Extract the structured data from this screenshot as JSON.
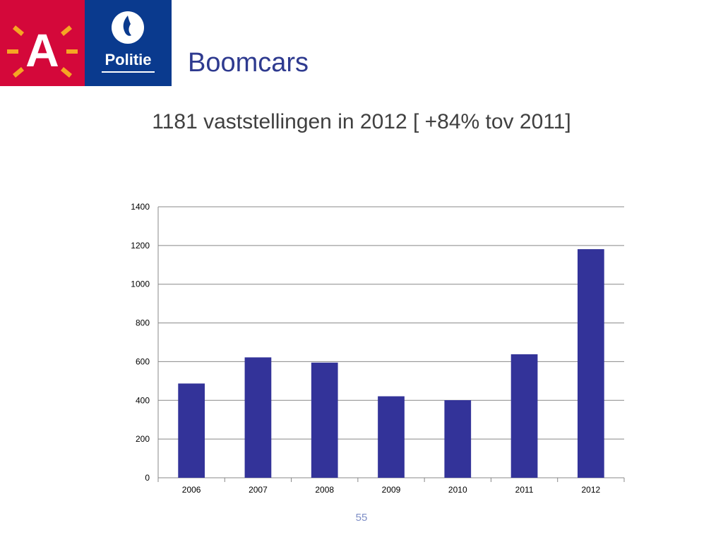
{
  "header": {
    "title": "Boomcars",
    "logo_antwerp_letter": "A",
    "logo_politie_text": "Politie"
  },
  "subtitle": "1181 vaststellingen in 2012 [ +84% tov 2011]",
  "page_number": "55",
  "colors": {
    "antwerp_red": "#d4083a",
    "antwerp_orange": "#f5a623",
    "politie_blue": "#0a3a8e",
    "title_blue": "#2e3a8f",
    "bar_color": "#333399"
  },
  "chart_data": {
    "type": "bar",
    "categories": [
      "2006",
      "2007",
      "2008",
      "2009",
      "2010",
      "2011",
      "2012"
    ],
    "values": [
      487,
      622,
      595,
      421,
      401,
      638,
      1181
    ],
    "title": "",
    "xlabel": "",
    "ylabel": "",
    "ylim": [
      0,
      1400
    ],
    "yticks": [
      "0",
      "200",
      "400",
      "600",
      "800",
      "1000",
      "1200",
      "1400"
    ],
    "grid": true,
    "legend": "none"
  }
}
